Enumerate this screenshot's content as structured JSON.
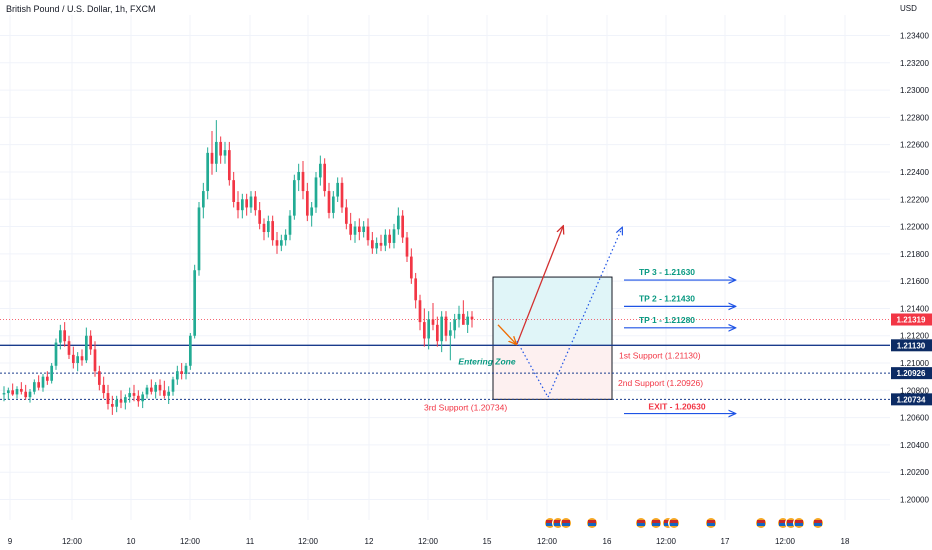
{
  "header": {
    "title": "British Pound / U.S. Dollar, 1h, FXCM",
    "currency": "USD"
  },
  "colors": {
    "bull": "#22ab94",
    "bear": "#f23645",
    "support_line": "#1a3c8c",
    "dotted_line": "#1a3c8c",
    "price_dotted": "#f23645",
    "tp_text": "#089981",
    "support_text": "#f23645",
    "arrow_blue": "#1e53e5",
    "arrow_red": "#d32f2f",
    "zone_top": "#e0f5f8",
    "zone_bottom": "#fdf0f0",
    "grid": "#f0f3fa"
  },
  "chart_data": {
    "type": "candlestick",
    "title": "British Pound / U.S. Dollar, 1h, FXCM",
    "y_axis_unit": "USD",
    "ylim": [
      1.1985,
      1.2355
    ],
    "y_ticks": [
      1.234,
      1.232,
      1.23,
      1.228,
      1.226,
      1.224,
      1.222,
      1.22,
      1.218,
      1.216,
      1.214,
      1.212,
      1.21,
      1.208,
      1.206,
      1.204,
      1.202,
      1.2
    ],
    "y_tick_labels": [
      "1.23400",
      "1.23200",
      "1.23000",
      "1.22800",
      "1.22600",
      "1.22400",
      "1.22200",
      "1.22000",
      "1.21800",
      "1.21600",
      "1.21400",
      "1.21200",
      "1.21000",
      "1.20800",
      "1.20600",
      "1.20400",
      "1.20200",
      "1.20000"
    ],
    "x_ticks": [
      "9",
      "12:00",
      "10",
      "12:00",
      "11",
      "12:00",
      "12",
      "12:00",
      "15",
      "12:00",
      "16",
      "12:00",
      "17",
      "12:00",
      "18"
    ],
    "candles": [
      [
        1.2077,
        1.2083,
        1.2072,
        1.2078
      ],
      [
        1.2078,
        1.2082,
        1.2073,
        1.208
      ],
      [
        1.208,
        1.2085,
        1.2076,
        1.2077
      ],
      [
        1.2077,
        1.2083,
        1.2074,
        1.2081
      ],
      [
        1.2081,
        1.2086,
        1.2077,
        1.2079
      ],
      [
        1.2079,
        1.2084,
        1.2073,
        1.2075
      ],
      [
        1.2075,
        1.2081,
        1.2071,
        1.2079
      ],
      [
        1.2079,
        1.2088,
        1.2077,
        1.2086
      ],
      [
        1.2086,
        1.2091,
        1.208,
        1.2082
      ],
      [
        1.2082,
        1.2092,
        1.2079,
        1.209
      ],
      [
        1.209,
        1.2094,
        1.2084,
        1.2087
      ],
      [
        1.2087,
        1.21,
        1.2085,
        1.2098
      ],
      [
        1.2098,
        1.2118,
        1.2095,
        1.2115
      ],
      [
        1.2115,
        1.2128,
        1.211,
        1.2124
      ],
      [
        1.2124,
        1.213,
        1.2112,
        1.2116
      ],
      [
        1.2116,
        1.212,
        1.2103,
        1.2106
      ],
      [
        1.2106,
        1.2112,
        1.2096,
        1.21
      ],
      [
        1.21,
        1.2108,
        1.2094,
        1.2105
      ],
      [
        1.2105,
        1.211,
        1.2098,
        1.2102
      ],
      [
        1.2102,
        1.2126,
        1.21,
        1.212
      ],
      [
        1.212,
        1.2124,
        1.2106,
        1.211
      ],
      [
        1.211,
        1.2116,
        1.209,
        1.2094
      ],
      [
        1.2094,
        1.2098,
        1.208,
        1.2084
      ],
      [
        1.2084,
        1.209,
        1.2074,
        1.2078
      ],
      [
        1.2078,
        1.2084,
        1.2066,
        1.207
      ],
      [
        1.207,
        1.2076,
        1.2062,
        1.2068
      ],
      [
        1.2068,
        1.2076,
        1.2064,
        1.2073
      ],
      [
        1.2073,
        1.208,
        1.2067,
        1.2071
      ],
      [
        1.2071,
        1.2077,
        1.2066,
        1.2075
      ],
      [
        1.2075,
        1.2082,
        1.2071,
        1.2078
      ],
      [
        1.2078,
        1.2084,
        1.2072,
        1.2076
      ],
      [
        1.2076,
        1.208,
        1.2068,
        1.2072
      ],
      [
        1.2072,
        1.2079,
        1.2067,
        1.2077
      ],
      [
        1.2077,
        1.2084,
        1.2074,
        1.2082
      ],
      [
        1.2082,
        1.2088,
        1.2077,
        1.2079
      ],
      [
        1.2079,
        1.2086,
        1.2074,
        1.2084
      ],
      [
        1.2084,
        1.2088,
        1.2076,
        1.208
      ],
      [
        1.208,
        1.2087,
        1.2074,
        1.2076
      ],
      [
        1.2076,
        1.2083,
        1.207,
        1.2079
      ],
      [
        1.2079,
        1.209,
        1.2076,
        1.2088
      ],
      [
        1.2088,
        1.2098,
        1.2084,
        1.2094
      ],
      [
        1.2094,
        1.21,
        1.2088,
        1.2092
      ],
      [
        1.2092,
        1.21,
        1.2088,
        1.2098
      ],
      [
        1.2098,
        1.2122,
        1.2095,
        1.212
      ],
      [
        1.212,
        1.2172,
        1.2118,
        1.2168
      ],
      [
        1.2168,
        1.2218,
        1.2164,
        1.2214
      ],
      [
        1.2214,
        1.2232,
        1.2206,
        1.2226
      ],
      [
        1.2226,
        1.2258,
        1.222,
        1.2254
      ],
      [
        1.2254,
        1.227,
        1.2238,
        1.2246
      ],
      [
        1.2246,
        1.2278,
        1.224,
        1.2262
      ],
      [
        1.2262,
        1.2266,
        1.2246,
        1.2252
      ],
      [
        1.2252,
        1.2262,
        1.2246,
        1.2256
      ],
      [
        1.2256,
        1.2262,
        1.223,
        1.2234
      ],
      [
        1.2234,
        1.224,
        1.2214,
        1.2218
      ],
      [
        1.2218,
        1.2226,
        1.2206,
        1.2212
      ],
      [
        1.2212,
        1.2224,
        1.2206,
        1.222
      ],
      [
        1.222,
        1.2224,
        1.2208,
        1.2214
      ],
      [
        1.2214,
        1.2226,
        1.221,
        1.2222
      ],
      [
        1.2222,
        1.2226,
        1.2208,
        1.2212
      ],
      [
        1.2212,
        1.2218,
        1.2198,
        1.2202
      ],
      [
        1.2202,
        1.2206,
        1.219,
        1.2196
      ],
      [
        1.2196,
        1.2208,
        1.2192,
        1.2204
      ],
      [
        1.2204,
        1.2208,
        1.2186,
        1.219
      ],
      [
        1.219,
        1.2196,
        1.218,
        1.2186
      ],
      [
        1.2186,
        1.2194,
        1.2182,
        1.219
      ],
      [
        1.219,
        1.2198,
        1.2186,
        1.2194
      ],
      [
        1.2194,
        1.2212,
        1.219,
        1.2208
      ],
      [
        1.2208,
        1.2238,
        1.2205,
        1.2234
      ],
      [
        1.2234,
        1.2246,
        1.2226,
        1.224
      ],
      [
        1.224,
        1.2248,
        1.222,
        1.2226
      ],
      [
        1.2226,
        1.2232,
        1.2204,
        1.2208
      ],
      [
        1.2208,
        1.2218,
        1.22,
        1.2214
      ],
      [
        1.2214,
        1.224,
        1.221,
        1.2236
      ],
      [
        1.2236,
        1.2252,
        1.223,
        1.2246
      ],
      [
        1.2246,
        1.225,
        1.2222,
        1.2226
      ],
      [
        1.2226,
        1.2232,
        1.2206,
        1.221
      ],
      [
        1.221,
        1.2226,
        1.2206,
        1.2222
      ],
      [
        1.2222,
        1.2236,
        1.2218,
        1.2232
      ],
      [
        1.2232,
        1.2236,
        1.221,
        1.2214
      ],
      [
        1.2214,
        1.222,
        1.2198,
        1.2202
      ],
      [
        1.2202,
        1.221,
        1.219,
        1.2194
      ],
      [
        1.2194,
        1.2204,
        1.2188,
        1.22
      ],
      [
        1.22,
        1.2206,
        1.219,
        1.2196
      ],
      [
        1.2196,
        1.2204,
        1.2192,
        1.22
      ],
      [
        1.22,
        1.2206,
        1.2186,
        1.219
      ],
      [
        1.219,
        1.2196,
        1.218,
        1.2184
      ],
      [
        1.2184,
        1.2192,
        1.218,
        1.2188
      ],
      [
        1.2188,
        1.2194,
        1.2182,
        1.2186
      ],
      [
        1.2186,
        1.2198,
        1.2182,
        1.2194
      ],
      [
        1.2194,
        1.2198,
        1.2184,
        1.2188
      ],
      [
        1.2188,
        1.2202,
        1.2184,
        1.2198
      ],
      [
        1.2198,
        1.2214,
        1.2194,
        1.2208
      ],
      [
        1.2208,
        1.2212,
        1.2188,
        1.2192
      ],
      [
        1.2192,
        1.2196,
        1.2174,
        1.2178
      ],
      [
        1.2178,
        1.2184,
        1.2158,
        1.2162
      ],
      [
        1.2162,
        1.2166,
        1.214,
        1.2146
      ],
      [
        1.2146,
        1.215,
        1.2124,
        1.213
      ],
      [
        1.213,
        1.214,
        1.2112,
        1.2118
      ],
      [
        1.2118,
        1.2138,
        1.211,
        1.2132
      ],
      [
        1.2132,
        1.2144,
        1.2124,
        1.2128
      ],
      [
        1.2128,
        1.2134,
        1.2112,
        1.2116
      ],
      [
        1.2116,
        1.2138,
        1.2108,
        1.2134
      ],
      [
        1.2134,
        1.2138,
        1.2116,
        1.212
      ],
      [
        1.212,
        1.213,
        1.2102,
        1.2124
      ],
      [
        1.2124,
        1.2136,
        1.2118,
        1.2132
      ],
      [
        1.2132,
        1.2142,
        1.2126,
        1.2136
      ],
      [
        1.2136,
        1.2146,
        1.213,
        1.2128
      ],
      [
        1.2128,
        1.2138,
        1.2122,
        1.2134
      ],
      [
        1.2134,
        1.2138,
        1.2126,
        1.2132
      ]
    ],
    "price_levels": [
      {
        "name": "current_price",
        "value": 1.21319,
        "label": "1.21319",
        "style": "dotted-red"
      },
      {
        "name": "first_support",
        "value": 1.2113,
        "label": "1.21130",
        "style": "solid-navy"
      },
      {
        "name": "second_support",
        "value": 1.20926,
        "label": "1.20926",
        "style": "dotted-navy"
      },
      {
        "name": "third_support",
        "value": 1.20734,
        "label": "1.20734",
        "style": "dotted-navy"
      }
    ],
    "annotations": [
      {
        "text": "TP 3 - 1.21630",
        "value": 1.2163,
        "kind": "tp"
      },
      {
        "text": "TP 2 - 1.21430",
        "value": 1.2143,
        "kind": "tp"
      },
      {
        "text": "TP 1 - 1.21280",
        "value": 1.2128,
        "kind": "tp"
      },
      {
        "text": "1st Support (1.21130)",
        "value": 1.2113,
        "kind": "support"
      },
      {
        "text": "2nd Support (1.20926)",
        "value": 1.20926,
        "kind": "support"
      },
      {
        "text": "3rd Support (1.20734)",
        "value": 1.20734,
        "kind": "support"
      },
      {
        "text": "EXIT - 1.20630",
        "value": 1.2063,
        "kind": "exit"
      },
      {
        "text": "Entering Zone",
        "kind": "zone"
      }
    ],
    "zone": {
      "top": 1.2163,
      "bottom": 1.20734
    },
    "grid": true,
    "event_icons": 14
  }
}
